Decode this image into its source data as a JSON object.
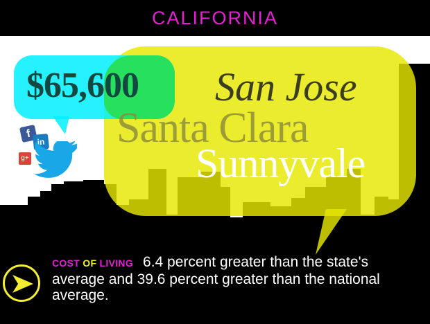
{
  "header": {
    "state": "CALIFORNIA"
  },
  "salary": "$65,600",
  "cities": [
    "San Jose",
    "Santa Clara",
    "Sunnyvale"
  ],
  "social": {
    "facebook": "f",
    "linkedin": "in",
    "googleplus": "g+"
  },
  "cost_of_living": {
    "label_words": [
      "COST",
      "OF",
      "LIVING"
    ],
    "text": "6.4 percent greater than the state's average and 39.6 percent greater than the national average."
  },
  "colors": {
    "magenta": "#e61ed6",
    "yellow": "#e8e800",
    "cyan": "#00f0ff",
    "black": "#000000"
  },
  "icons": [
    "facebook-icon",
    "linkedin-icon",
    "googleplus-icon",
    "twitter-icon",
    "arrow-right-icon"
  ]
}
